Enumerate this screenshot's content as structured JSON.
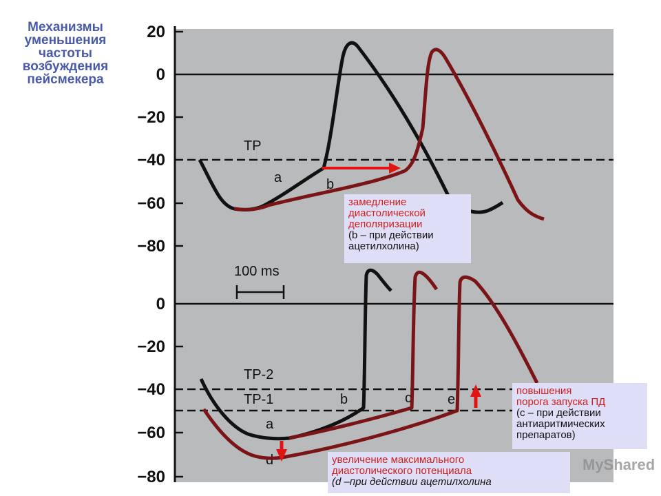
{
  "title_lines": [
    "Механизмы",
    "уменьшения",
    "частоты",
    "возбуждения",
    "пейсмекера"
  ],
  "y_ticks_top": [
    "20",
    "0",
    "−20",
    "−40",
    "−60",
    "−80"
  ],
  "y_ticks_bottom": [
    "0",
    "−20",
    "−40",
    "−60",
    "−80"
  ],
  "labels": {
    "tp": "TP",
    "tp2": "TP-2",
    "tp1": "TP-1",
    "time_scale": "100 ms",
    "curve_a_top": "a",
    "curve_b_top": "b",
    "curve_a_bottom": "a",
    "curve_b_bottom": "b",
    "curve_c": "c",
    "curve_d": "d",
    "curve_e": "e"
  },
  "callouts": {
    "slow_depolarization": {
      "lines": [
        "замедление",
        "диастолической",
        "деполяризации"
      ],
      "note": [
        "(b – при действии",
        "ацетилхолина)"
      ]
    },
    "threshold_increase": {
      "lines": [
        "повышения",
        "порога запуска ПД"
      ],
      "note": [
        "(c – при действии",
        "антиаритмических",
        "препаратов)"
      ]
    },
    "max_diastolic": {
      "lines": [
        "увеличение максимального",
        "диастолического потенциала"
      ],
      "note": [
        "(d –при действии ацетилхолина"
      ]
    }
  },
  "watermark": "MyShared",
  "colors": {
    "title": "#4a5aa8",
    "callout_bg": "#dedff7",
    "red": "#cc1f1f",
    "dark_red": "#7a1417",
    "panel": "#b9babc"
  }
}
